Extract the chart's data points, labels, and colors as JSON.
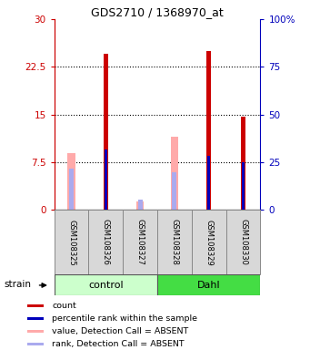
{
  "title": "GDS2710 / 1368970_at",
  "samples": [
    "GSM108325",
    "GSM108326",
    "GSM108327",
    "GSM108328",
    "GSM108329",
    "GSM108330"
  ],
  "ylim_left": [
    0,
    30
  ],
  "ylim_right": [
    0,
    100
  ],
  "yticks_left": [
    0,
    7.5,
    15,
    22.5,
    30
  ],
  "yticks_right": [
    0,
    25,
    50,
    75,
    100
  ],
  "ytick_labels_left": [
    "0",
    "7.5",
    "15",
    "22.5",
    "30"
  ],
  "ytick_labels_right": [
    "0",
    "25",
    "50",
    "75",
    "100%"
  ],
  "count_values": [
    0,
    24.5,
    0,
    0,
    25.0,
    14.7
  ],
  "rank_values": [
    0,
    9.5,
    0,
    0,
    8.5,
    7.5
  ],
  "absent_value_values": [
    9.0,
    0,
    1.4,
    11.5,
    0,
    0
  ],
  "absent_rank_values": [
    6.5,
    0,
    1.6,
    6.0,
    0,
    0
  ],
  "color_count": "#cc0000",
  "color_rank": "#0000bb",
  "color_absent_value": "#ffaaaa",
  "color_absent_rank": "#aaaaee",
  "color_group_control_light": "#ccffcc",
  "color_group_control_dark": "#44dd44",
  "color_group_dahl_light": "#44dd44",
  "color_axis_left": "#cc0000",
  "color_axis_right": "#0000bb",
  "legend_items": [
    "count",
    "percentile rank within the sample",
    "value, Detection Call = ABSENT",
    "rank, Detection Call = ABSENT"
  ]
}
